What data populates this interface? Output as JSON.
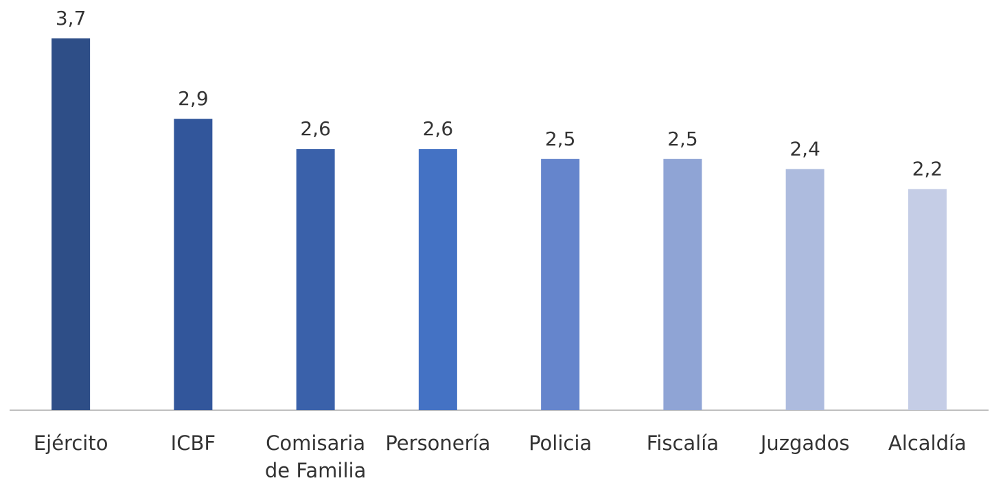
{
  "chart_data": {
    "type": "bar",
    "categories": [
      "Ejército",
      "ICBF",
      "Comisaria de Familia",
      "Personería",
      "Policia",
      "Fiscalía",
      "Juzgados",
      "Alcaldía"
    ],
    "values": [
      3.7,
      2.9,
      2.6,
      2.6,
      2.5,
      2.5,
      2.4,
      2.2
    ],
    "value_labels": [
      "3,7",
      "2,9",
      "2,6",
      "2,6",
      "2,5",
      "2,5",
      "2,4",
      "2,2"
    ],
    "colors": [
      "#2e4e87",
      "#32569b",
      "#3a61aa",
      "#4472c4",
      "#6585cc",
      "#8fa4d5",
      "#adbbde",
      "#c5cde6"
    ]
  }
}
